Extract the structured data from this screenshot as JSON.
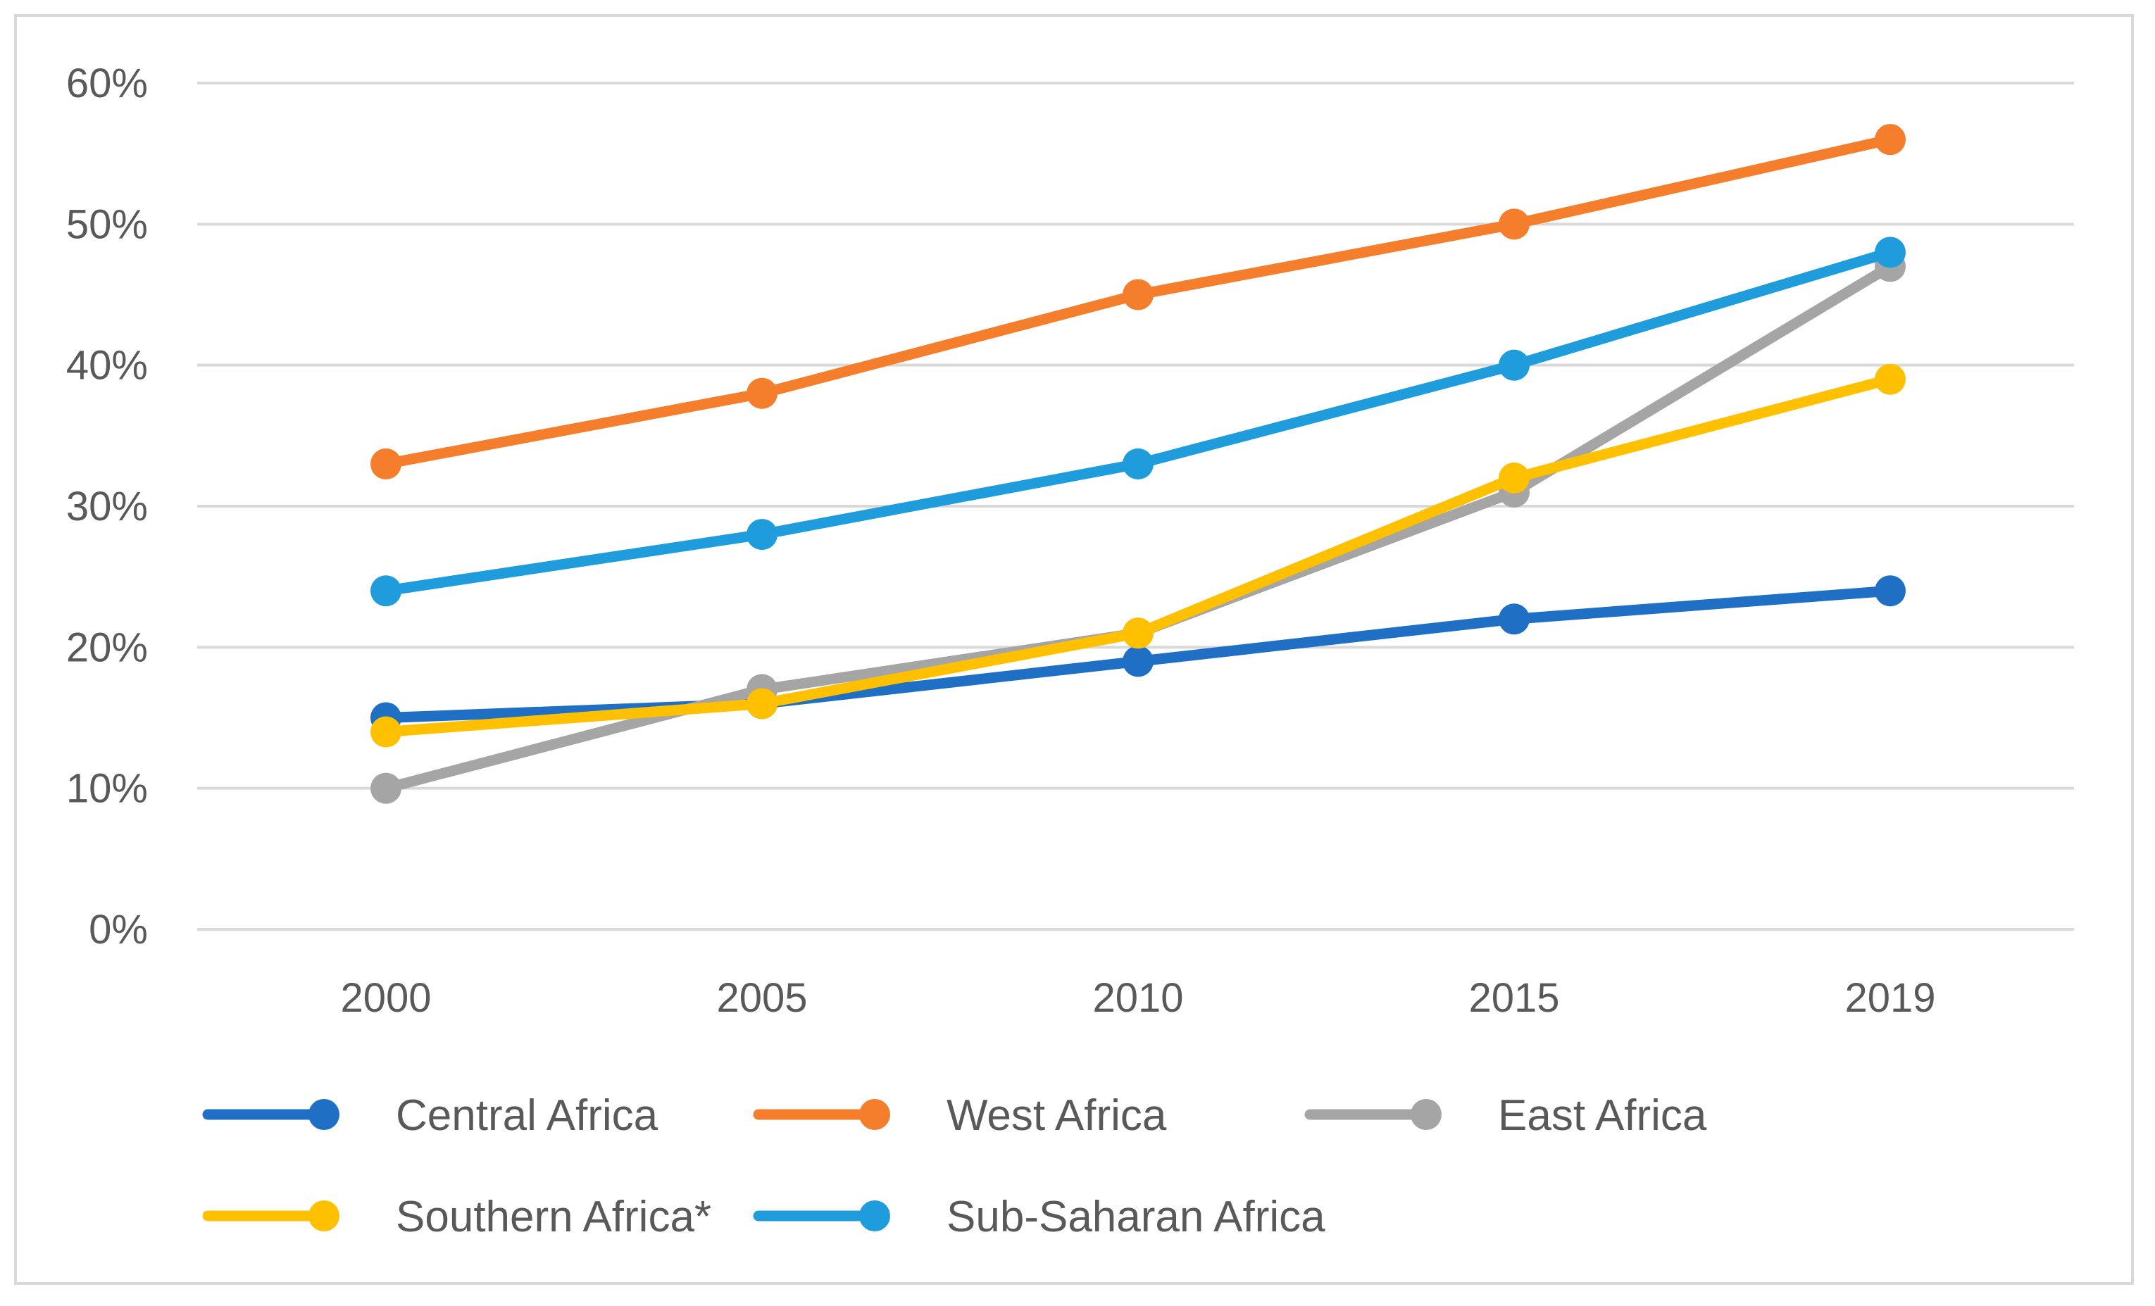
{
  "chart_data": {
    "type": "line",
    "title": "",
    "xlabel": "",
    "ylabel": "",
    "categories": [
      "2000",
      "2005",
      "2010",
      "2015",
      "2019"
    ],
    "ylim": [
      0,
      60
    ],
    "yticks": [
      0,
      10,
      20,
      30,
      40,
      50,
      60
    ],
    "ytick_labels": [
      "0%",
      "10%",
      "20%",
      "30%",
      "40%",
      "50%",
      "60%"
    ],
    "grid": true,
    "legend_position": "bottom",
    "series": [
      {
        "name": "Central Africa",
        "color": "#1F6FC5",
        "values": [
          15,
          16,
          19,
          22,
          24
        ]
      },
      {
        "name": "West Africa",
        "color": "#F47E2C",
        "values": [
          33,
          38,
          45,
          50,
          56
        ]
      },
      {
        "name": "East Africa",
        "color": "#A5A5A5",
        "values": [
          10,
          17,
          21,
          31,
          47
        ]
      },
      {
        "name": "Southern Africa*",
        "color": "#FFC000",
        "values": [
          14,
          16,
          21,
          32,
          39
        ]
      },
      {
        "name": "Sub-Saharan Africa",
        "color": "#1F9CDB",
        "values": [
          24,
          28,
          33,
          40,
          48
        ]
      }
    ],
    "draw_order": [
      0,
      1,
      2,
      4,
      3
    ]
  }
}
